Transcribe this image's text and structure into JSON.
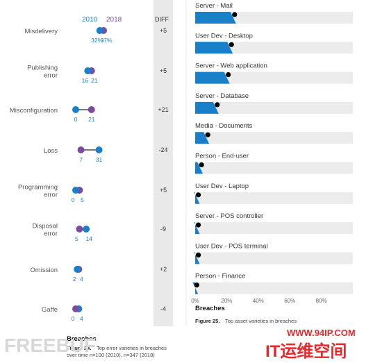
{
  "colors": {
    "c2010": "#1a7fc9",
    "c2018": "#7a4b9e",
    "bar": "#1a7fc9",
    "diffband": "#e9e9e9"
  },
  "left": {
    "legend_2010": "2010",
    "legend_2018": "2018",
    "diff_header": "DIFF",
    "title": "Breaches",
    "caption_bold": "Figure 24.",
    "caption_line1": "Top error varieties in breaches",
    "caption_line2": "over time n=100 (2010), n=347 (2018)"
  },
  "right": {
    "title": "Breaches",
    "caption_bold": "Figure 25.",
    "caption_text": "Top asset varieties in breaches"
  },
  "watermark": {
    "url": "WWW.94IP.COM",
    "text": "IT运维空间",
    "left": "FREEBUF"
  },
  "chart_data": [
    {
      "type": "dumbbell",
      "title": "Breaches",
      "series": [
        {
          "name": "2010"
        },
        {
          "name": "2018"
        }
      ],
      "categories": [
        "Misdelivery",
        "Publishing error",
        "Misconfiguration",
        "Loss",
        "Programming error",
        "Disposal error",
        "Omission",
        "Gaffe"
      ],
      "label_lines": [
        [
          "Misdelivery"
        ],
        [
          "Publishing",
          "error"
        ],
        [
          "Misconfiguration"
        ],
        [
          "Loss"
        ],
        [
          "Programming",
          "error"
        ],
        [
          "Disposal",
          "error"
        ],
        [
          "Omission"
        ],
        [
          "Gaffe"
        ]
      ],
      "values_2010": [
        32,
        16,
        0,
        31,
        0,
        14,
        2,
        4
      ],
      "values_2018": [
        37,
        21,
        21,
        7,
        5,
        5,
        4,
        0
      ],
      "value_labels": [
        [
          "32%",
          "37%"
        ],
        [
          "16",
          "21"
        ],
        [
          "0",
          "21"
        ],
        [
          "7",
          "31"
        ],
        [
          "0",
          "5"
        ],
        [
          "5",
          "14"
        ],
        [
          "2",
          "4"
        ],
        [
          "0",
          "4"
        ]
      ],
      "diff": [
        "+5",
        "+5",
        "+21",
        "-24",
        "+5",
        "-9",
        "+2",
        "-4"
      ],
      "xlim": [
        0,
        40
      ]
    },
    {
      "type": "bar",
      "title": "Breaches",
      "categories": [
        "Server - Mail",
        "User Dev - Desktop",
        "Server - Web application",
        "Server - Database",
        "Media - Documents",
        "Person - End-user",
        "User Dev - Laptop",
        "Server - POS controller",
        "User Dev - POS terminal",
        "Person - Finance"
      ],
      "values": [
        25,
        23,
        21,
        14,
        8,
        4,
        2,
        2,
        2,
        1
      ],
      "xlim": [
        0,
        100
      ],
      "x_ticks": [
        "0%",
        "20%",
        "40%",
        "60%",
        "80%"
      ],
      "grid": false
    }
  ]
}
